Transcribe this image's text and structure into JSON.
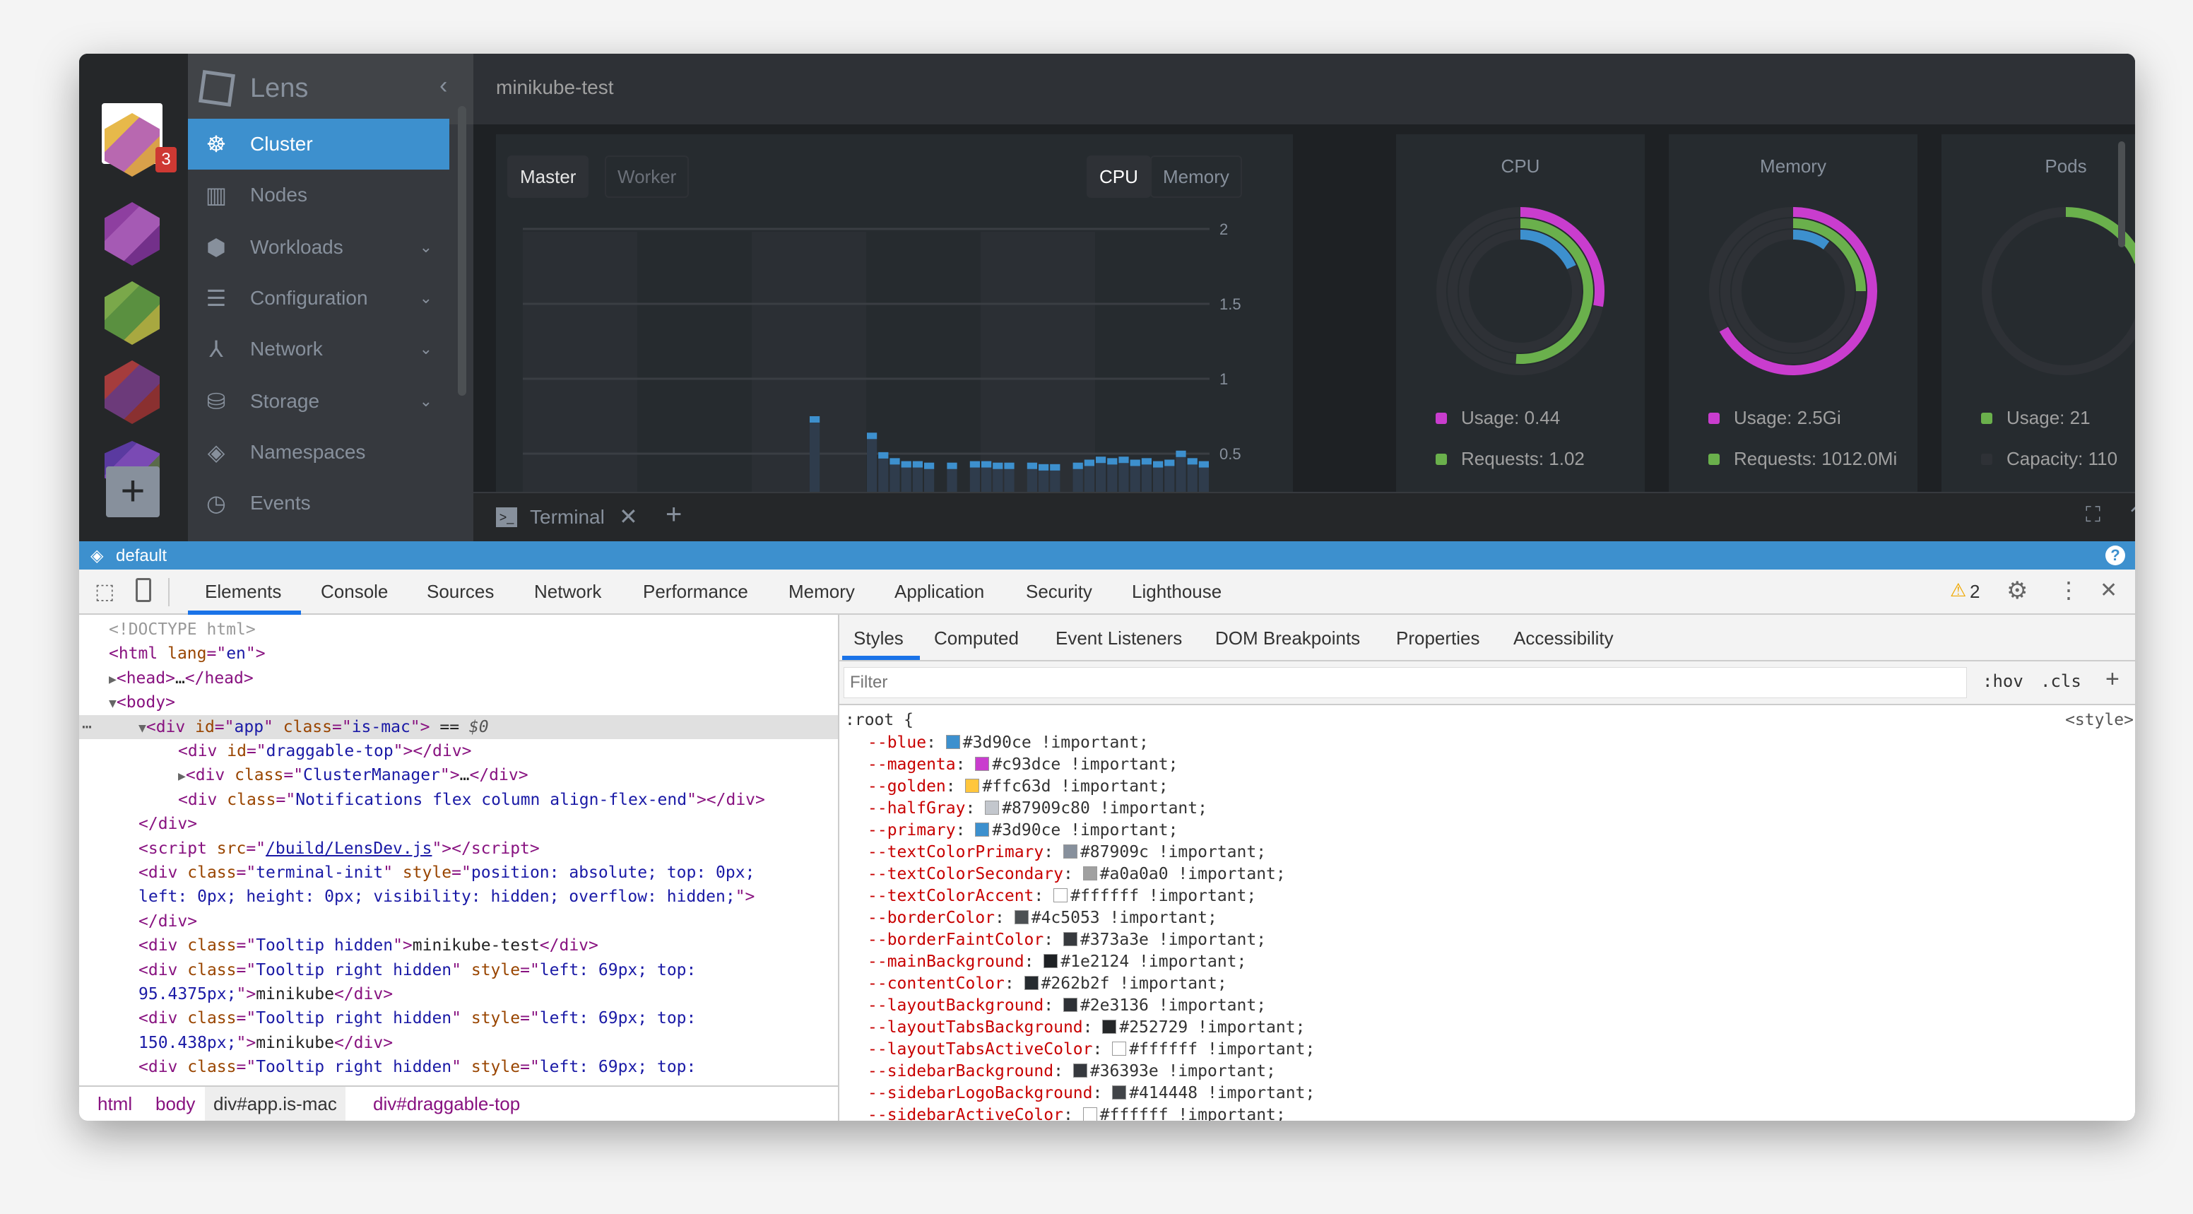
{
  "window": {
    "traffic_lights": [
      "#fc605c",
      "#fdbc40",
      "#34c84a"
    ]
  },
  "clusters": {
    "badge": "3",
    "add_icon": "plus-icon",
    "items": [
      {
        "colors": [
          "#e7b94a",
          "#b868b0",
          "#d9a14a"
        ]
      },
      {
        "colors": [
          "#8e3fa0",
          "#a55ab4",
          "#73308a"
        ]
      },
      {
        "colors": [
          "#7aa84a",
          "#5a9040",
          "#a8a840"
        ]
      },
      {
        "colors": [
          "#a53c3c",
          "#6c3a7a",
          "#8a3030"
        ]
      },
      {
        "colors": [
          "#5a3aa0",
          "#7a4ab4",
          "#5a6a4a"
        ]
      }
    ]
  },
  "sidebar": {
    "app_name": "Lens",
    "items": [
      {
        "label": "Cluster",
        "icon": "helm-wheel-icon",
        "glyph": "☸",
        "active": true,
        "expandable": false
      },
      {
        "label": "Nodes",
        "icon": "nodes-icon",
        "glyph": "▥",
        "expandable": false
      },
      {
        "label": "Workloads",
        "icon": "workloads-icon",
        "glyph": "⬢",
        "expandable": true
      },
      {
        "label": "Configuration",
        "icon": "list-icon",
        "glyph": "☰",
        "expandable": true
      },
      {
        "label": "Network",
        "icon": "network-icon",
        "glyph": "⅄",
        "expandable": true
      },
      {
        "label": "Storage",
        "icon": "database-icon",
        "glyph": "⛁",
        "expandable": true
      },
      {
        "label": "Namespaces",
        "icon": "layers-icon",
        "glyph": "◈",
        "expandable": false
      },
      {
        "label": "Events",
        "icon": "clock-icon",
        "glyph": "◷",
        "expandable": false
      }
    ]
  },
  "header": {
    "title": "minikube-test"
  },
  "chart": {
    "node_tabs": [
      "Master",
      "Worker"
    ],
    "metric_tabs": [
      "CPU",
      "Memory"
    ],
    "active_node": "Master",
    "active_metric": "CPU"
  },
  "chart_data": {
    "type": "bar",
    "yticks": [
      "2",
      "1.5",
      "1",
      "0.5"
    ],
    "ylim": [
      0.42,
      2
    ],
    "grid": true,
    "color": "#3d90ce",
    "values": [
      null,
      null,
      null,
      null,
      null,
      null,
      null,
      null,
      null,
      null,
      null,
      null,
      null,
      null,
      null,
      null,
      null,
      null,
      null,
      null,
      null,
      null,
      null,
      null,
      null,
      0.75,
      null,
      null,
      null,
      null,
      0.64,
      0.51,
      0.47,
      0.45,
      0.45,
      0.44,
      null,
      0.44,
      null,
      0.45,
      0.45,
      0.44,
      0.44,
      null,
      0.44,
      0.43,
      0.43,
      null,
      0.44,
      0.46,
      0.48,
      0.47,
      0.48,
      0.46,
      0.47,
      0.45,
      0.46,
      0.52,
      0.47,
      0.45
    ]
  },
  "cards": [
    {
      "title": "CPU",
      "legend": [
        {
          "label": "Usage: 0.44",
          "color": "#c93dce"
        },
        {
          "label": "Requests: 1.02",
          "color": "#6ab04c"
        }
      ],
      "rings": [
        {
          "color": "#c93dce",
          "fraction": 0.28
        },
        {
          "color": "#6ab04c",
          "fraction": 0.51
        },
        {
          "color": "#3d90ce",
          "fraction": 0.18
        }
      ]
    },
    {
      "title": "Memory",
      "legend": [
        {
          "label": "Usage: 2.5Gi",
          "color": "#c93dce"
        },
        {
          "label": "Requests: 1012.0Mi",
          "color": "#6ab04c"
        }
      ],
      "rings": [
        {
          "color": "#c93dce",
          "fraction": 0.67
        },
        {
          "color": "#6ab04c",
          "fraction": 0.25
        },
        {
          "color": "#3d90ce",
          "fraction": 0.1
        }
      ]
    },
    {
      "title": "Pods",
      "legend": [
        {
          "label": "Usage: 21",
          "color": "#6ab04c"
        },
        {
          "label": "Capacity: 110",
          "color": "#2e3136"
        }
      ],
      "rings": [
        {
          "color": "#6ab04c",
          "fraction": 0.19
        }
      ]
    }
  ],
  "terminal": {
    "tab_label": "Terminal"
  },
  "status": {
    "namespace": "default"
  },
  "devtools": {
    "tabs": [
      "Elements",
      "Console",
      "Sources",
      "Network",
      "Performance",
      "Memory",
      "Application",
      "Security",
      "Lighthouse"
    ],
    "active_tab": "Elements",
    "warnings": "2",
    "elements": [
      {
        "i": 0,
        "tok": [
          [
            "com",
            "<!DOCTYPE html>"
          ]
        ]
      },
      {
        "i": 0,
        "tok": [
          [
            "tag",
            "<html "
          ],
          [
            "attr",
            "lang"
          ],
          [
            "tag",
            "=\""
          ],
          [
            "val",
            "en"
          ],
          [
            "tag",
            "\">"
          ]
        ]
      },
      {
        "i": 0,
        "arrow": "▶",
        "tok": [
          [
            "tag",
            "<head>"
          ],
          [
            "txt",
            "…"
          ],
          [
            "tag",
            "</head>"
          ]
        ]
      },
      {
        "i": 0,
        "arrow": "▼",
        "tok": [
          [
            "tag",
            "<body>"
          ]
        ]
      },
      {
        "i": 1,
        "arrow": "▼",
        "sel": true,
        "tok": [
          [
            "tag",
            "<div "
          ],
          [
            "attr",
            "id"
          ],
          [
            "tag",
            "=\""
          ],
          [
            "val",
            "app"
          ],
          [
            "tag",
            "\" "
          ],
          [
            "attr",
            "class"
          ],
          [
            "tag",
            "=\""
          ],
          [
            "val",
            "is-mac"
          ],
          [
            "tag",
            "\">"
          ],
          [
            "txt",
            " == "
          ],
          [
            "sel",
            "$0"
          ]
        ]
      },
      {
        "i": 2,
        "tok": [
          [
            "tag",
            "<div "
          ],
          [
            "attr",
            "id"
          ],
          [
            "tag",
            "=\""
          ],
          [
            "val",
            "draggable-top"
          ],
          [
            "tag",
            "\"></div>"
          ]
        ]
      },
      {
        "i": 2,
        "arrow": "▶",
        "tok": [
          [
            "tag",
            "<div "
          ],
          [
            "attr",
            "class"
          ],
          [
            "tag",
            "=\""
          ],
          [
            "val",
            "ClusterManager"
          ],
          [
            "tag",
            "\">"
          ],
          [
            "txt",
            "…"
          ],
          [
            "tag",
            "</div>"
          ]
        ]
      },
      {
        "i": 2,
        "tok": [
          [
            "tag",
            "<div "
          ],
          [
            "attr",
            "class"
          ],
          [
            "tag",
            "=\""
          ],
          [
            "val",
            "Notifications flex column align-flex-end"
          ],
          [
            "tag",
            "\"></div>"
          ]
        ]
      },
      {
        "i": 1,
        "tok": [
          [
            "tag",
            "</div>"
          ]
        ]
      },
      {
        "i": 1,
        "tok": [
          [
            "tag",
            "<script "
          ],
          [
            "attr",
            "src"
          ],
          [
            "tag",
            "=\""
          ],
          [
            "link",
            "/build/LensDev.js"
          ],
          [
            "tag",
            "\"></script>"
          ]
        ]
      },
      {
        "i": 1,
        "tok": [
          [
            "tag",
            "<div "
          ],
          [
            "attr",
            "class"
          ],
          [
            "tag",
            "=\""
          ],
          [
            "val",
            "terminal-init"
          ],
          [
            "tag",
            "\" "
          ],
          [
            "attr",
            "style"
          ],
          [
            "tag",
            "=\""
          ],
          [
            "val",
            "position: absolute; top: 0px;"
          ]
        ]
      },
      {
        "i": 1,
        "tok": [
          [
            "val",
            "left: 0px; height: 0px; visibility: hidden; overflow: hidden;"
          ],
          [
            "tag",
            "\">"
          ]
        ]
      },
      {
        "i": 1,
        "tok": [
          [
            "tag",
            "</div>"
          ]
        ]
      },
      {
        "i": 1,
        "tok": [
          [
            "tag",
            "<div "
          ],
          [
            "attr",
            "class"
          ],
          [
            "tag",
            "=\""
          ],
          [
            "val",
            "Tooltip hidden"
          ],
          [
            "tag",
            "\">"
          ],
          [
            "txt",
            "minikube-test"
          ],
          [
            "tag",
            "</div>"
          ]
        ]
      },
      {
        "i": 1,
        "tok": [
          [
            "tag",
            "<div "
          ],
          [
            "attr",
            "class"
          ],
          [
            "tag",
            "=\""
          ],
          [
            "val",
            "Tooltip right hidden"
          ],
          [
            "tag",
            "\" "
          ],
          [
            "attr",
            "style"
          ],
          [
            "tag",
            "=\""
          ],
          [
            "val",
            "left: 69px; top:"
          ]
        ]
      },
      {
        "i": 1,
        "tok": [
          [
            "val",
            "95.4375px;"
          ],
          [
            "tag",
            "\">"
          ],
          [
            "txt",
            "minikube"
          ],
          [
            "tag",
            "</div>"
          ]
        ]
      },
      {
        "i": 1,
        "tok": [
          [
            "tag",
            "<div "
          ],
          [
            "attr",
            "class"
          ],
          [
            "tag",
            "=\""
          ],
          [
            "val",
            "Tooltip right hidden"
          ],
          [
            "tag",
            "\" "
          ],
          [
            "attr",
            "style"
          ],
          [
            "tag",
            "=\""
          ],
          [
            "val",
            "left: 69px; top:"
          ]
        ]
      },
      {
        "i": 1,
        "tok": [
          [
            "val",
            "150.438px;"
          ],
          [
            "tag",
            "\">"
          ],
          [
            "txt",
            "minikube"
          ],
          [
            "tag",
            "</div>"
          ]
        ]
      },
      {
        "i": 1,
        "tok": [
          [
            "tag",
            "<div "
          ],
          [
            "attr",
            "class"
          ],
          [
            "tag",
            "=\""
          ],
          [
            "val",
            "Tooltip right hidden"
          ],
          [
            "tag",
            "\" "
          ],
          [
            "attr",
            "style"
          ],
          [
            "tag",
            "=\""
          ],
          [
            "val",
            "left: 69px; top:"
          ]
        ]
      }
    ],
    "breadcrumb": [
      "html",
      "body",
      "div#app.is-mac",
      "div#draggable-top"
    ],
    "style_tabs": [
      "Styles",
      "Computed",
      "Event Listeners",
      "DOM Breakpoints",
      "Properties",
      "Accessibility"
    ],
    "filter_placeholder": "Filter",
    "hov": ":hov",
    "cls": ".cls",
    "add": "+",
    "rule": {
      "selector": ":root {",
      "source": "<style>",
      "props": [
        {
          "n": "--blue",
          "c": "#3d90ce",
          "v": "#3d90ce !important;"
        },
        {
          "n": "--magenta",
          "c": "#c93dce",
          "v": "#c93dce !important;"
        },
        {
          "n": "--golden",
          "c": "#ffc63d",
          "v": "#ffc63d !important;"
        },
        {
          "n": "--halfGray",
          "c": "#87909c80",
          "v": "#87909c80 !important;"
        },
        {
          "n": "--primary",
          "c": "#3d90ce",
          "v": "#3d90ce !important;"
        },
        {
          "n": "--textColorPrimary",
          "c": "#87909c",
          "v": "#87909c !important;"
        },
        {
          "n": "--textColorSecondary",
          "c": "#a0a0a0",
          "v": "#a0a0a0 !important;"
        },
        {
          "n": "--textColorAccent",
          "c": "#ffffff",
          "v": "#ffffff !important;"
        },
        {
          "n": "--borderColor",
          "c": "#4c5053",
          "v": "#4c5053 !important;"
        },
        {
          "n": "--borderFaintColor",
          "c": "#373a3e",
          "v": "#373a3e !important;"
        },
        {
          "n": "--mainBackground",
          "c": "#1e2124",
          "v": "#1e2124 !important;"
        },
        {
          "n": "--contentColor",
          "c": "#262b2f",
          "v": "#262b2f !important;"
        },
        {
          "n": "--layoutBackground",
          "c": "#2e3136",
          "v": "#2e3136 !important;"
        },
        {
          "n": "--layoutTabsBackground",
          "c": "#252729",
          "v": "#252729 !important;"
        },
        {
          "n": "--layoutTabsActiveColor",
          "c": "#ffffff",
          "v": "#ffffff !important;"
        },
        {
          "n": "--sidebarBackground",
          "c": "#36393e",
          "v": "#36393e !important;"
        },
        {
          "n": "--sidebarLogoBackground",
          "c": "#414448",
          "v": "#414448 !important;"
        },
        {
          "n": "--sidebarActiveColor",
          "c": "#ffffff",
          "v": "#ffffff !important;"
        }
      ]
    }
  }
}
